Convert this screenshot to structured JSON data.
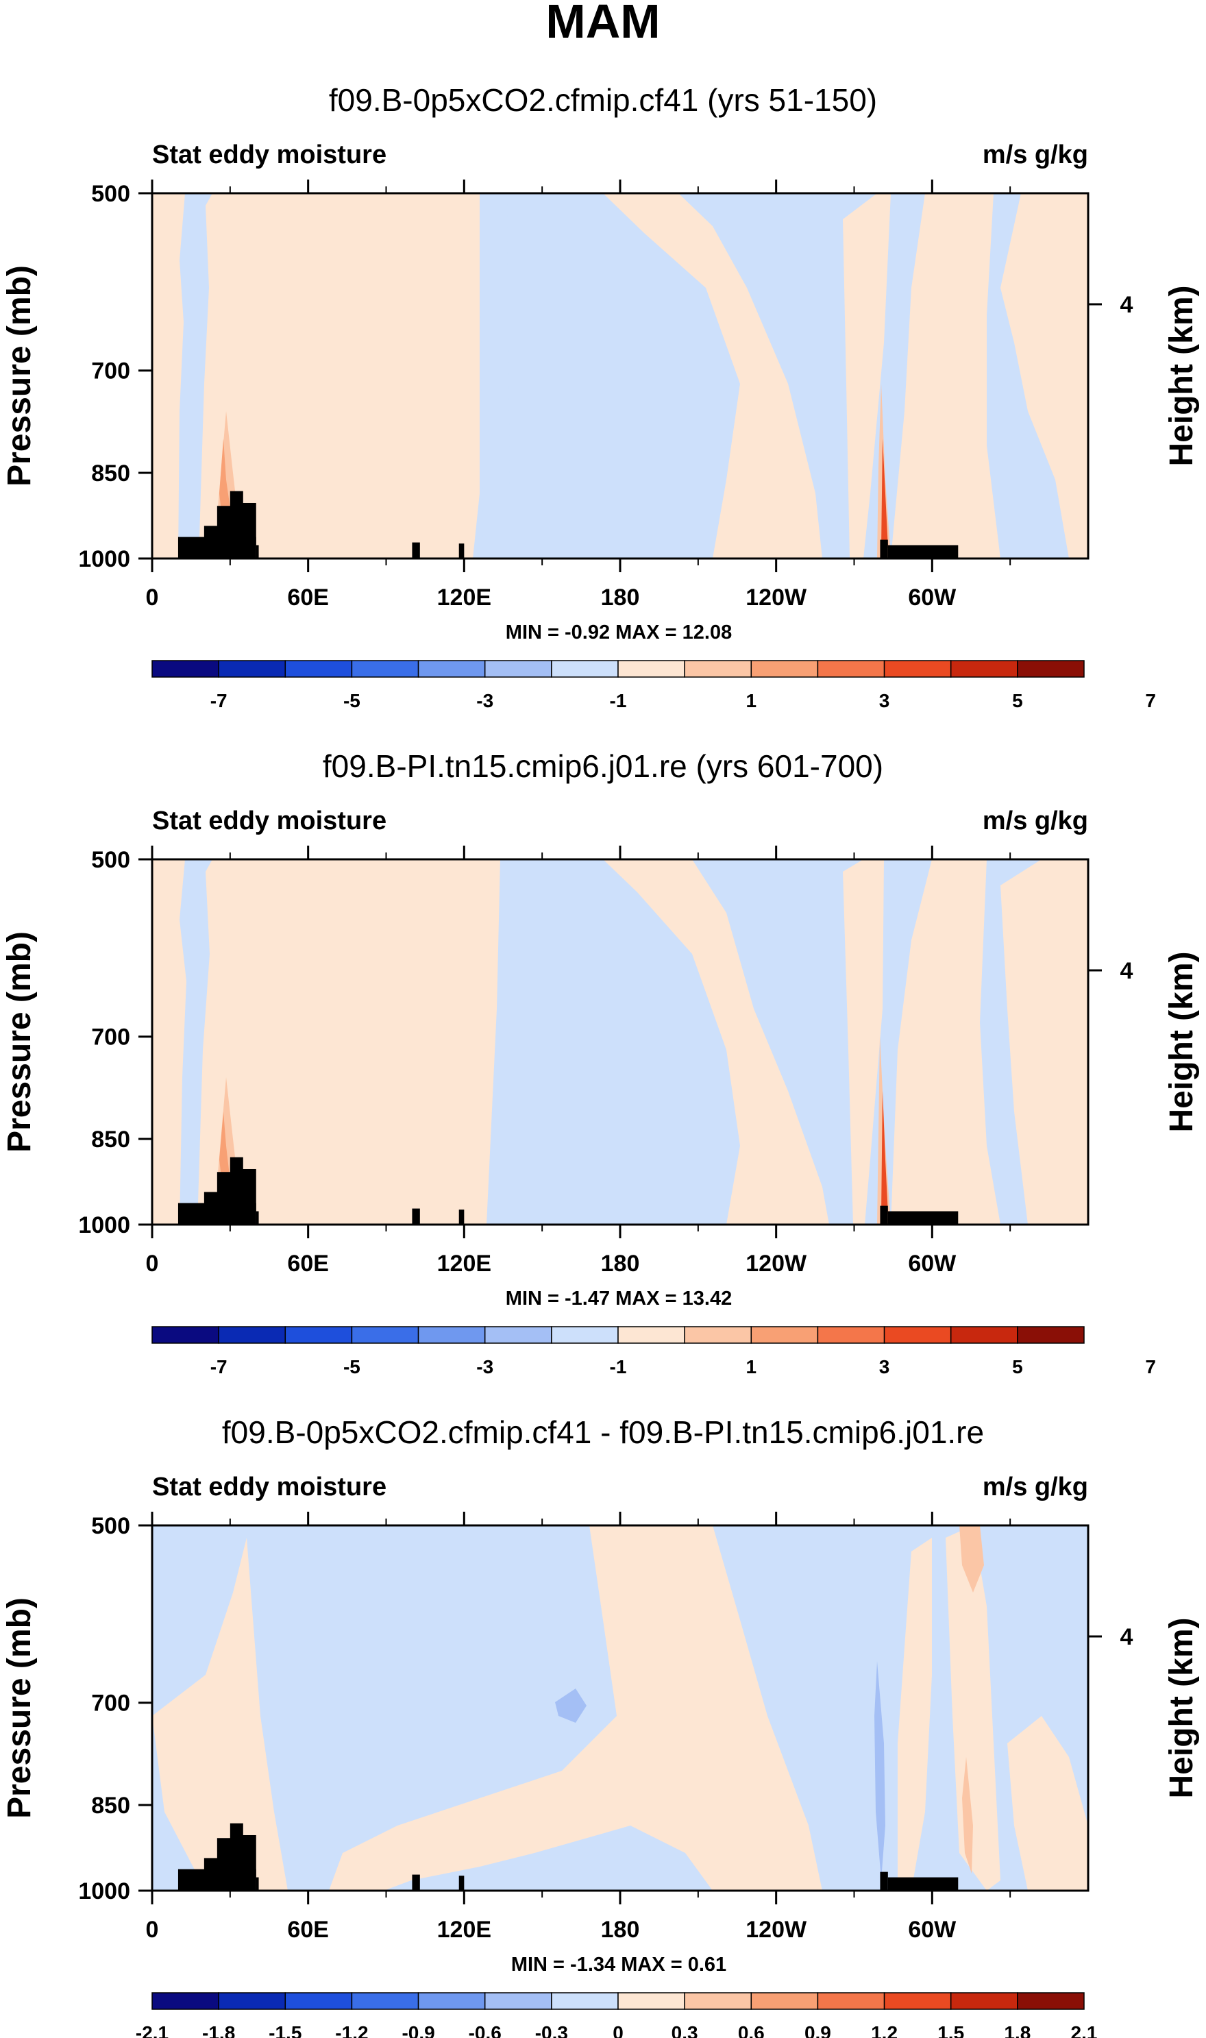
{
  "page_title": "MAM",
  "colors": {
    "land": "#000000",
    "axis": "#000000",
    "background": "#ffffff"
  },
  "chart_data": [
    {
      "type": "heatmap",
      "title": "f09.B-0p5xCO2.cfmip.cf41 (yrs 51-150)",
      "left_label": "Stat eddy moisture",
      "right_label": "m/s g/kg",
      "ylabel": "Pressure (mb)",
      "y2label": "Height (km)",
      "x_ticks": [
        "0",
        "60E",
        "120E",
        "180",
        "120W",
        "60W"
      ],
      "y_ticks": [
        "500",
        "700",
        "850",
        "1000"
      ],
      "y2_ticks": [
        "4"
      ],
      "stats": "MIN =  -0.92   MAX =  12.08",
      "colorbar_labels": [
        "-7",
        "-5",
        "-3",
        "-1",
        "1",
        "3",
        "5",
        "7"
      ],
      "colorbar_colors": [
        "#0a0a80",
        "#0a2ab4",
        "#1e4fdc",
        "#3a6ee8",
        "#6f98ef",
        "#a4bff5",
        "#cde0fb",
        "#fde6d3",
        "#fbc6a6",
        "#f8a074",
        "#f4764a",
        "#ea4a22",
        "#c8280e",
        "#8a0f06"
      ],
      "min": -0.92,
      "max": 12.08
    },
    {
      "type": "heatmap",
      "title": "f09.B-PI.tn15.cmip6.j01.re (yrs 601-700)",
      "left_label": "Stat eddy moisture",
      "right_label": "m/s g/kg",
      "ylabel": "Pressure (mb)",
      "y2label": "Height (km)",
      "x_ticks": [
        "0",
        "60E",
        "120E",
        "180",
        "120W",
        "60W"
      ],
      "y_ticks": [
        "500",
        "700",
        "850",
        "1000"
      ],
      "y2_ticks": [
        "4"
      ],
      "stats": "MIN =  -1.47   MAX =  13.42",
      "colorbar_labels": [
        "-7",
        "-5",
        "-3",
        "-1",
        "1",
        "3",
        "5",
        "7"
      ],
      "colorbar_colors": [
        "#0a0a80",
        "#0a2ab4",
        "#1e4fdc",
        "#3a6ee8",
        "#6f98ef",
        "#a4bff5",
        "#cde0fb",
        "#fde6d3",
        "#fbc6a6",
        "#f8a074",
        "#f4764a",
        "#ea4a22",
        "#c8280e",
        "#8a0f06"
      ],
      "min": -1.47,
      "max": 13.42
    },
    {
      "type": "heatmap",
      "title": "f09.B-0p5xCO2.cfmip.cf41 - f09.B-PI.tn15.cmip6.j01.re",
      "left_label": "Stat eddy moisture",
      "right_label": "m/s g/kg",
      "ylabel": "Pressure (mb)",
      "y2label": "Height (km)",
      "x_ticks": [
        "0",
        "60E",
        "120E",
        "180",
        "120W",
        "60W"
      ],
      "y_ticks": [
        "500",
        "700",
        "850",
        "1000"
      ],
      "y2_ticks": [
        "4"
      ],
      "stats": "MIN =  -1.34   MAX =   0.61",
      "colorbar_labels": [
        "-2.1",
        "-1.8",
        "-1.5",
        "-1.2",
        "-0.9",
        "-0.6",
        "-0.3",
        "0",
        "0.3",
        "0.6",
        "0.9",
        "1.2",
        "1.5",
        "1.8",
        "2.1"
      ],
      "colorbar_colors": [
        "#0a0a80",
        "#0a2ab4",
        "#1e4fdc",
        "#3a6ee8",
        "#6f98ef",
        "#a4bff5",
        "#cde0fb",
        "#fde6d3",
        "#fbc6a6",
        "#f8a074",
        "#f4764a",
        "#ea4a22",
        "#c8280e",
        "#8a0f06"
      ],
      "min": -1.34,
      "max": 0.61
    }
  ]
}
